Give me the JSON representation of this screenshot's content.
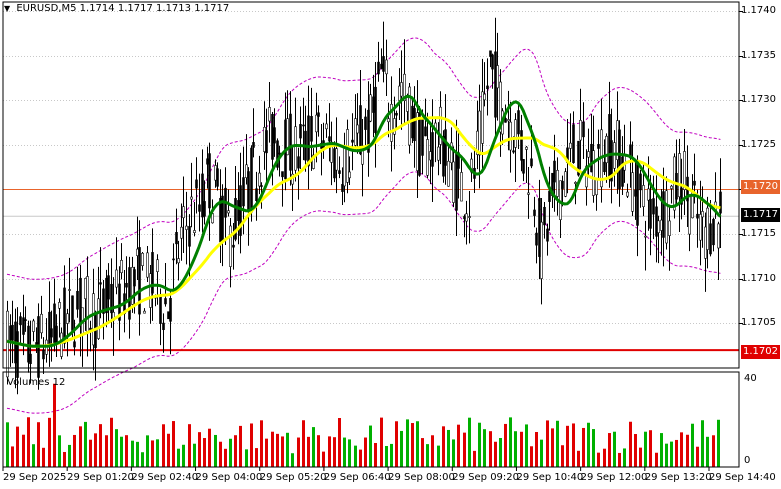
{
  "header": {
    "symbol": "EURUSD,M5",
    "open": "1.1714",
    "high": "1.1717",
    "low": "1.1713",
    "close": "1.1717"
  },
  "volume_panel": {
    "title": "Volumes 12",
    "scale_max": "40",
    "scale_min": "0"
  },
  "price_axis": {
    "labels": [
      "1.1740",
      "1.1735",
      "1.1730",
      "1.1725",
      "1.1720",
      "1.1715",
      "1.1710",
      "1.1705",
      "1.1702"
    ]
  },
  "price_tags": {
    "level_upper": {
      "value": "1.1720",
      "bg": "#e8642c"
    },
    "current": {
      "value": "1.1717",
      "bg": "#000000"
    },
    "level_lower": {
      "value": "1.1702",
      "bg": "#e00000"
    }
  },
  "time_axis": {
    "labels": [
      "29 Sep 2025",
      "29 Sep 01:20",
      "29 Sep 02:40",
      "29 Sep 04:00",
      "29 Sep 05:20",
      "29 Sep 06:40",
      "29 Sep 08:00",
      "29 Sep 09:20",
      "29 Sep 10:40",
      "29 Sep 12:00",
      "29 Sep 13:20",
      "29 Sep 14:40"
    ]
  },
  "colors": {
    "candle": "#000000",
    "ma_fast": "#008000",
    "ma_slow": "#ffff00",
    "envelope": "#c000c0",
    "vol_up": "#00b000",
    "vol_down": "#e00000",
    "level_upper": "#e8642c",
    "level_lower": "#e00000",
    "grid": "#c8c8c8"
  },
  "chart_data": {
    "type": "candlestick",
    "symbol": "EURUSD",
    "timeframe": "M5",
    "ylim": [
      1.17,
      1.1741
    ],
    "levels": [
      1.172,
      1.1702
    ],
    "last_price": 1.1717,
    "price_path": [
      [
        0,
        1.1703
      ],
      [
        8,
        1.1702
      ],
      [
        16,
        1.1703
      ],
      [
        22,
        1.1705
      ],
      [
        28,
        1.1707
      ],
      [
        34,
        1.1706
      ],
      [
        42,
        1.1708
      ],
      [
        50,
        1.171
      ],
      [
        56,
        1.1709
      ],
      [
        62,
        1.1707
      ],
      [
        66,
        1.1713
      ],
      [
        70,
        1.1717
      ],
      [
        74,
        1.1718
      ],
      [
        78,
        1.1721
      ],
      [
        82,
        1.1718
      ],
      [
        86,
        1.1715
      ],
      [
        90,
        1.1718
      ],
      [
        94,
        1.1721
      ],
      [
        98,
        1.1724
      ],
      [
        102,
        1.1726
      ],
      [
        106,
        1.1725
      ],
      [
        112,
        1.1724
      ],
      [
        118,
        1.1726
      ],
      [
        124,
        1.1725
      ],
      [
        128,
        1.1723
      ],
      [
        134,
        1.1725
      ],
      [
        140,
        1.1727
      ],
      [
        144,
        1.1733
      ],
      [
        148,
        1.1729
      ],
      [
        152,
        1.1731
      ],
      [
        156,
        1.1728
      ],
      [
        160,
        1.1724
      ],
      [
        166,
        1.1726
      ],
      [
        172,
        1.1722
      ],
      [
        178,
        1.1719
      ],
      [
        182,
        1.1725
      ],
      [
        186,
        1.1734
      ],
      [
        190,
        1.173
      ],
      [
        194,
        1.1728
      ],
      [
        198,
        1.1725
      ],
      [
        202,
        1.1722
      ],
      [
        206,
        1.1713
      ],
      [
        210,
        1.1719
      ],
      [
        214,
        1.1721
      ],
      [
        218,
        1.1724
      ],
      [
        222,
        1.1724
      ],
      [
        226,
        1.1723
      ],
      [
        232,
        1.1725
      ],
      [
        238,
        1.1723
      ],
      [
        244,
        1.1719
      ],
      [
        248,
        1.1717
      ],
      [
        254,
        1.1718
      ],
      [
        260,
        1.1722
      ],
      [
        264,
        1.1718
      ],
      [
        268,
        1.1715
      ],
      [
        272,
        1.1717
      ],
      [
        275,
        1.1717
      ]
    ],
    "volumes_range": [
      0,
      40
    ]
  }
}
